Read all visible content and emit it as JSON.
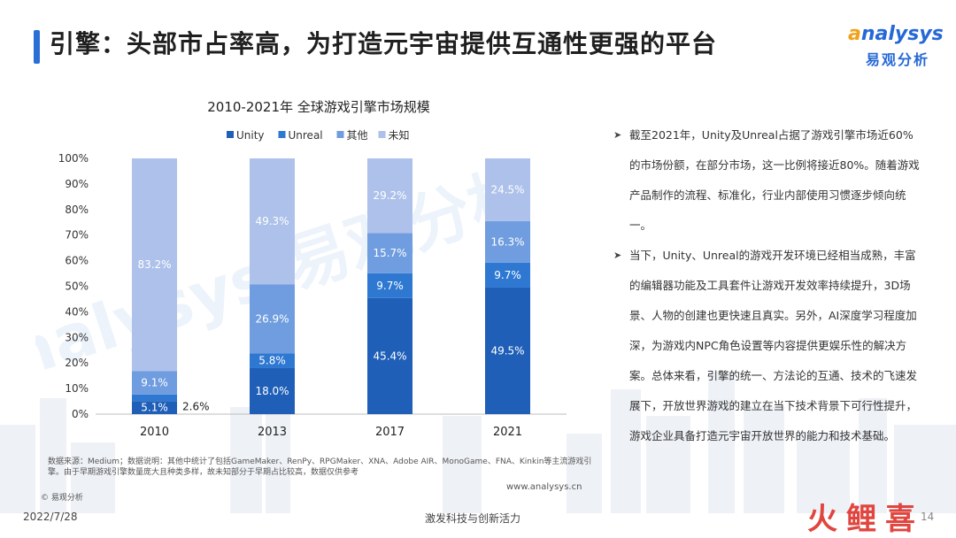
{
  "header": {
    "title": "引擎：头部市占率高，为打造元宇宙提供互通性更强的平台"
  },
  "logo": {
    "wordmark_first": "a",
    "wordmark_rest": "nalysys",
    "chinese": "易观分析"
  },
  "watermark": {
    "text": "analysys 易观分析"
  },
  "chart_data": {
    "type": "bar",
    "stacked": true,
    "title": "2010-2021年 全球游戏引擎市场规模",
    "categories": [
      "2010",
      "2013",
      "2017",
      "2021"
    ],
    "series": [
      {
        "name": "Unity",
        "color": "#1f5fb8",
        "values": [
          5.1,
          18.0,
          45.4,
          49.5
        ],
        "labels": [
          "5.1%",
          "18.0%",
          "45.4%",
          "49.5%"
        ]
      },
      {
        "name": "Unreal",
        "color": "#2e78d2",
        "values": [
          2.6,
          5.8,
          9.7,
          9.7
        ],
        "labels": [
          "2.6%",
          "5.8%",
          "9.7%",
          "9.7%"
        ]
      },
      {
        "name": "其他",
        "color": "#6f9ddf",
        "values": [
          9.1,
          26.9,
          15.7,
          16.3
        ],
        "labels": [
          "9.1%",
          "26.9%",
          "15.7%",
          "16.3%"
        ]
      },
      {
        "name": "未知",
        "color": "#adc1ea",
        "values": [
          83.2,
          49.3,
          29.2,
          24.5
        ],
        "labels": [
          "83.2%",
          "49.3%",
          "29.2%",
          "24.5%"
        ]
      }
    ],
    "y_ticks": [
      "0%",
      "10%",
      "20%",
      "30%",
      "40%",
      "50%",
      "60%",
      "70%",
      "80%",
      "90%",
      "100%"
    ],
    "ylim": [
      0,
      100
    ],
    "legend_position": "top",
    "grid": false
  },
  "notes": [
    "截至2021年，Unity及Unreal占据了游戏引擎市场近60%的市场份额，在部分市场，这一比例将接近80%。随着游戏产品制作的流程、标准化，行业内部使用习惯逐步倾向统一。",
    "当下，Unity、Unreal的游戏开发环境已经相当成熟，丰富的编辑器功能及工具套件让游戏开发效率持续提升，3D场景、人物的创建也更快速且真实。另外，AI深度学习程度加深，为游戏内NPC角色设置等内容提供更娱乐性的解决方案。总体来看，引擎的统一、方法论的互通、技术的飞速发展下，开放世界游戏的建立在当下技术背景下可行性提升，游戏企业具备打造元宇宙开放世界的能力和技术基础。"
  ],
  "source": "数据来源：Medium；数据说明：其他中统计了包括GameMaker、RenPy、RPGMaker、XNA、Adobe AIR、MonoGame、FNA、Kinkin等主流游戏引擎。由于早期游戏引擎数量庞大且种类多样，故未知部分于早期占比较高，数据仅供参考",
  "copyright": "© 易观分析",
  "website": "www.analysys.cn",
  "footer": {
    "date": "2022/7/28",
    "center": "激发科技与创新活力",
    "page": "14"
  },
  "stamp": {
    "text": "火鲤喜"
  }
}
